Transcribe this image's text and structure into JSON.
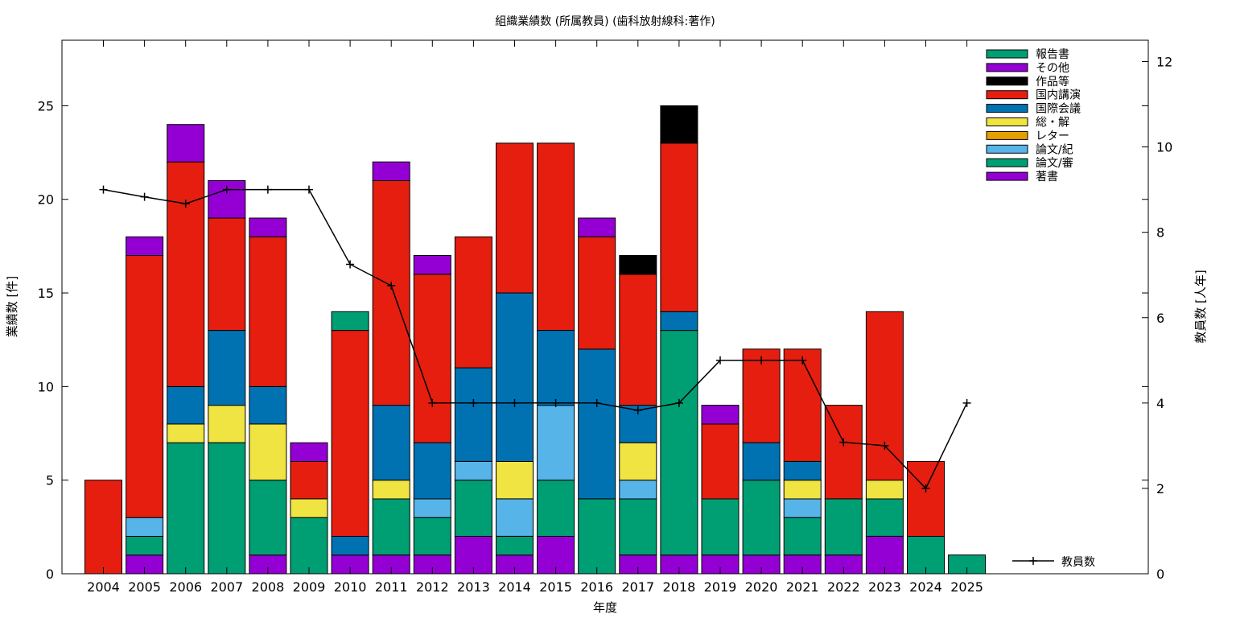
{
  "chart_data": {
    "type": "bar",
    "stacked": true,
    "title": "組織業績数 (所属教員) (歯科放射線科:著作)",
    "xlabel": "年度",
    "ylabel": "業績数 [件]",
    "y2label": "教員数 [人年]",
    "ylim": [
      0,
      28.5
    ],
    "y2lim": [
      0,
      12.5
    ],
    "yticks": [
      0,
      5,
      10,
      15,
      20,
      25
    ],
    "y2ticks": [
      0,
      2,
      4,
      6,
      8,
      10,
      12
    ],
    "grid": false,
    "legend_position": "top-right",
    "categories": [
      "2004",
      "2005",
      "2006",
      "2007",
      "2008",
      "2009",
      "2010",
      "2011",
      "2012",
      "2013",
      "2014",
      "2015",
      "2016",
      "2017",
      "2018",
      "2019",
      "2020",
      "2021",
      "2022",
      "2023",
      "2024",
      "2025"
    ],
    "series": [
      {
        "name": "著書",
        "color": "#9400d3",
        "values": [
          0,
          1,
          0,
          0,
          1,
          0,
          1,
          1,
          1,
          2,
          1,
          2,
          0,
          1,
          1,
          1,
          1,
          1,
          1,
          2,
          0,
          0
        ]
      },
      {
        "name": "論文/審",
        "color": "#009e73",
        "values": [
          0,
          1,
          7,
          7,
          4,
          3,
          0,
          3,
          2,
          3,
          1,
          3,
          4,
          3,
          12,
          3,
          4,
          2,
          3,
          2,
          2,
          1
        ]
      },
      {
        "name": "論文/紀",
        "color": "#56b4e9",
        "values": [
          0,
          1,
          0,
          0,
          0,
          0,
          0,
          0,
          1,
          1,
          2,
          4,
          0,
          1,
          0,
          0,
          0,
          1,
          0,
          0,
          0,
          0
        ]
      },
      {
        "name": "レター",
        "color": "#e69f00",
        "values": [
          0,
          0,
          0,
          0,
          0,
          0,
          0,
          0,
          0,
          0,
          0,
          0,
          0,
          0,
          0,
          0,
          0,
          0,
          0,
          0,
          0,
          0
        ]
      },
      {
        "name": "総・解",
        "color": "#f0e442",
        "values": [
          0,
          0,
          1,
          2,
          3,
          1,
          0,
          1,
          0,
          0,
          2,
          0,
          0,
          2,
          0,
          0,
          0,
          1,
          0,
          1,
          0,
          0
        ]
      },
      {
        "name": "国際会議",
        "color": "#0072b2",
        "values": [
          0,
          0,
          2,
          4,
          2,
          0,
          1,
          4,
          3,
          5,
          9,
          4,
          8,
          2,
          1,
          0,
          2,
          1,
          0,
          0,
          0,
          0
        ]
      },
      {
        "name": "国内講演",
        "color": "#e51e10",
        "values": [
          5,
          14,
          12,
          6,
          8,
          2,
          11,
          12,
          9,
          7,
          8,
          10,
          6,
          7,
          9,
          4,
          5,
          6,
          5,
          9,
          4,
          0
        ]
      },
      {
        "name": "作品等",
        "color": "#000000",
        "values": [
          0,
          0,
          0,
          0,
          0,
          0,
          0,
          0,
          0,
          0,
          0,
          0,
          0,
          1,
          2,
          0,
          0,
          0,
          0,
          0,
          0,
          0
        ]
      },
      {
        "name": "その他",
        "color": "#9400d3",
        "values": [
          0,
          1,
          2,
          2,
          1,
          1,
          0,
          1,
          1,
          0,
          0,
          0,
          1,
          0,
          0,
          1,
          0,
          0,
          0,
          0,
          0,
          0
        ]
      },
      {
        "name": "報告書",
        "color": "#009e73",
        "values": [
          0,
          0,
          0,
          0,
          0,
          0,
          1,
          0,
          0,
          0,
          0,
          0,
          0,
          0,
          0,
          0,
          0,
          0,
          0,
          0,
          0,
          0
        ]
      }
    ],
    "line_series": {
      "name": "教員数",
      "axis": "y2",
      "color": "#000000",
      "values": [
        9.0,
        8.83,
        8.67,
        9.0,
        9.0,
        9.0,
        7.25,
        6.75,
        4.0,
        4.0,
        4.0,
        4.0,
        4.0,
        3.83,
        4.0,
        5.0,
        5.0,
        5.0,
        3.08,
        3.0,
        2.0,
        4.0
      ]
    }
  }
}
